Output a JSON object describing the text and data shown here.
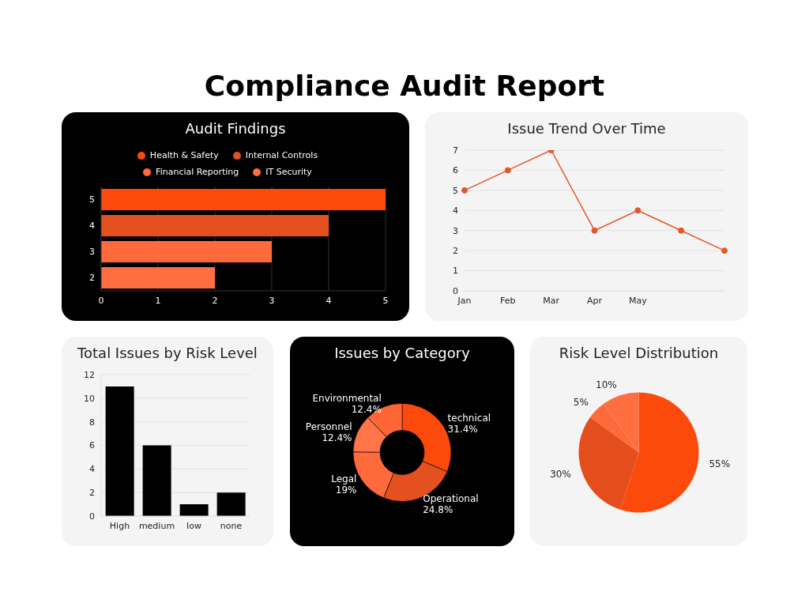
{
  "chart_data": [
    {
      "type": "other",
      "title": "Compliance Audit Report"
    },
    {
      "type": "bar",
      "title": "Audit Findings",
      "orientation": "horizontal",
      "stacked": true,
      "categories": [
        "5",
        "4",
        "3",
        "2"
      ],
      "series": [
        {
          "name": "Health & Safety",
          "color": "#fc4a0c",
          "values": [
            5,
            null,
            null,
            null
          ]
        },
        {
          "name": "Internal Controls",
          "color": "#e4501f",
          "values": [
            null,
            4,
            null,
            null
          ]
        },
        {
          "name": "Financial Reporting",
          "color": "#ff6a3c",
          "values": [
            null,
            null,
            3,
            null
          ]
        },
        {
          "name": "IT Security",
          "color": "#ff6e40",
          "values": [
            null,
            null,
            null,
            2
          ]
        }
      ],
      "xlim": [
        0,
        5
      ],
      "xticks": [
        0,
        1,
        2,
        3,
        4,
        5
      ],
      "grid": "x",
      "legend": "top"
    },
    {
      "type": "line",
      "title": "Issue Trend Over Time",
      "categories": [
        "Jan",
        "Feb",
        "Mar",
        "Apr",
        "May",
        null,
        null
      ],
      "values": [
        5,
        6,
        7,
        3,
        4,
        3,
        2
      ],
      "color": "#e4572e",
      "ylim": [
        0,
        7
      ],
      "yticks": [
        0,
        1,
        2,
        3,
        4,
        5,
        6,
        7
      ],
      "grid": "y",
      "marker": "circle"
    },
    {
      "type": "bar",
      "title": "Total Issues by Risk Level",
      "categories": [
        "High",
        "medium",
        "low",
        "none"
      ],
      "values": [
        11,
        6,
        1,
        2
      ],
      "color": "#000000",
      "ylim": [
        0,
        12
      ],
      "yticks": [
        0,
        2,
        4,
        6,
        8,
        10,
        12
      ],
      "grid": "y"
    },
    {
      "type": "donut",
      "title": "Issues by Category",
      "categories": [
        "technical",
        "Operational",
        "Legal",
        "Personnel",
        "Environmental"
      ],
      "values": [
        31.4,
        24.8,
        19,
        12.4,
        12.4
      ],
      "value_labels": [
        "31.4%",
        "24.8%",
        "19%",
        "12.4%",
        "12.4%"
      ],
      "colors": [
        "#fc4a0c",
        "#e4501f",
        "#ff6a3c",
        "#ff7448",
        "#ff6636"
      ]
    },
    {
      "type": "pie",
      "title": "Risk Level Distribution",
      "categories": [
        null,
        null,
        null,
        null
      ],
      "values": [
        55,
        30,
        5,
        10
      ],
      "value_labels": [
        "55%",
        "30%",
        "5%",
        "10%"
      ],
      "colors": [
        "#fc4a0c",
        "#e34e1c",
        "#ff6a3a",
        "#ff6e40"
      ]
    }
  ]
}
